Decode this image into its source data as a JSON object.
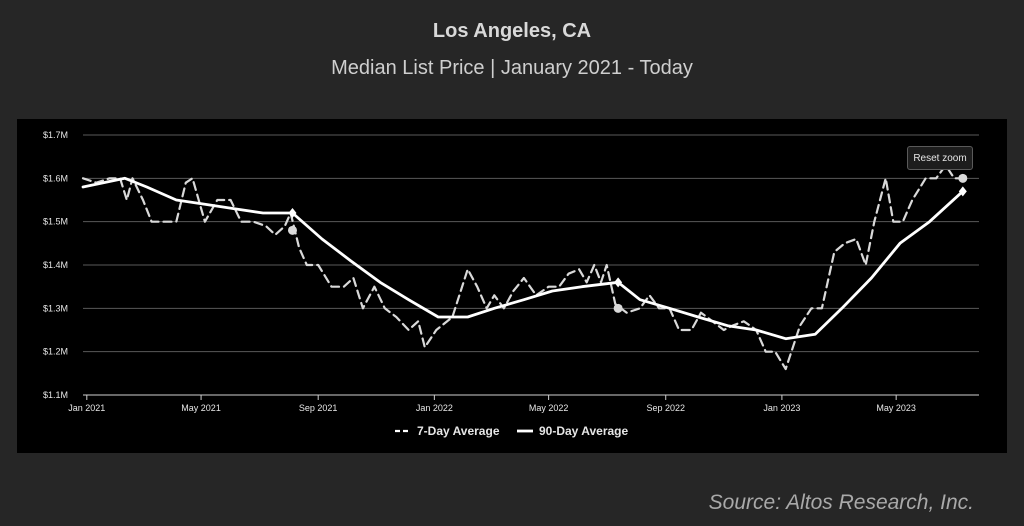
{
  "header": {
    "title": "Los Angeles, CA",
    "subtitle": "Median List Price  |  January 2021 - Today"
  },
  "reset_zoom_label": "Reset zoom",
  "source": "Source: Altos Research, Inc.",
  "colors": {
    "background": "#262626",
    "plot_background": "#000000",
    "line": "#ffffff",
    "grid": "#5a5a5a"
  },
  "chart_data": {
    "type": "line",
    "ylim": [
      1.1,
      1.7
    ],
    "y_ticks": [
      {
        "value": 1.1,
        "label": "$1.1M"
      },
      {
        "value": 1.2,
        "label": "$1.2M"
      },
      {
        "value": 1.3,
        "label": "$1.3M"
      },
      {
        "value": 1.4,
        "label": "$1.4M"
      },
      {
        "value": 1.5,
        "label": "$1.5M"
      },
      {
        "value": 1.6,
        "label": "$1.6M"
      },
      {
        "value": 1.7,
        "label": "$1.7M"
      }
    ],
    "x_ticks": [
      {
        "date": "2021-01-01",
        "label": "Jan 2021"
      },
      {
        "date": "2021-05-01",
        "label": "May 2021"
      },
      {
        "date": "2021-09-01",
        "label": "Sep 2021"
      },
      {
        "date": "2022-01-01",
        "label": "Jan 2022"
      },
      {
        "date": "2022-05-01",
        "label": "May 2022"
      },
      {
        "date": "2022-09-01",
        "label": "Sep 2022"
      },
      {
        "date": "2023-01-01",
        "label": "Jan 2023"
      },
      {
        "date": "2023-05-01",
        "label": "May 2023"
      }
    ],
    "xlim": [
      "2020-12-28",
      "2023-07-27"
    ],
    "grid": true,
    "legend_position": "bottom",
    "series": [
      {
        "name": "7-Day Average",
        "style": "dashed",
        "points": [
          [
            "2020-12-28",
            1.6
          ],
          [
            "2021-01-11",
            1.59
          ],
          [
            "2021-01-25",
            1.6
          ],
          [
            "2021-02-05",
            1.6
          ],
          [
            "2021-02-12",
            1.55
          ],
          [
            "2021-02-18",
            1.6
          ],
          [
            "2021-03-01",
            1.55
          ],
          [
            "2021-03-10",
            1.5
          ],
          [
            "2021-03-25",
            1.5
          ],
          [
            "2021-04-05",
            1.5
          ],
          [
            "2021-04-15",
            1.59
          ],
          [
            "2021-04-22",
            1.6
          ],
          [
            "2021-05-05",
            1.5
          ],
          [
            "2021-05-18",
            1.55
          ],
          [
            "2021-06-01",
            1.55
          ],
          [
            "2021-06-12",
            1.5
          ],
          [
            "2021-06-25",
            1.5
          ],
          [
            "2021-07-08",
            1.49
          ],
          [
            "2021-07-18",
            1.47
          ],
          [
            "2021-07-28",
            1.49
          ],
          [
            "2021-08-03",
            1.52
          ],
          [
            "2021-08-12",
            1.44
          ],
          [
            "2021-08-20",
            1.4
          ],
          [
            "2021-09-01",
            1.4
          ],
          [
            "2021-09-15",
            1.35
          ],
          [
            "2021-09-28",
            1.35
          ],
          [
            "2021-10-08",
            1.37
          ],
          [
            "2021-10-18",
            1.3
          ],
          [
            "2021-10-30",
            1.35
          ],
          [
            "2021-11-10",
            1.3
          ],
          [
            "2021-11-22",
            1.28
          ],
          [
            "2021-12-05",
            1.25
          ],
          [
            "2021-12-15",
            1.27
          ],
          [
            "2021-12-22",
            1.21
          ],
          [
            "2022-01-03",
            1.25
          ],
          [
            "2022-01-20",
            1.28
          ],
          [
            "2022-02-05",
            1.39
          ],
          [
            "2022-02-15",
            1.35
          ],
          [
            "2022-02-25",
            1.3
          ],
          [
            "2022-03-05",
            1.33
          ],
          [
            "2022-03-15",
            1.3
          ],
          [
            "2022-03-25",
            1.34
          ],
          [
            "2022-04-05",
            1.37
          ],
          [
            "2022-04-18",
            1.33
          ],
          [
            "2022-05-01",
            1.35
          ],
          [
            "2022-05-12",
            1.35
          ],
          [
            "2022-05-22",
            1.38
          ],
          [
            "2022-06-02",
            1.39
          ],
          [
            "2022-06-10",
            1.36
          ],
          [
            "2022-06-18",
            1.4
          ],
          [
            "2022-06-25",
            1.36
          ],
          [
            "2022-07-01",
            1.4
          ],
          [
            "2022-07-10",
            1.31
          ],
          [
            "2022-07-22",
            1.29
          ],
          [
            "2022-08-05",
            1.3
          ],
          [
            "2022-08-15",
            1.33
          ],
          [
            "2022-08-25",
            1.3
          ],
          [
            "2022-09-05",
            1.3
          ],
          [
            "2022-09-15",
            1.25
          ],
          [
            "2022-09-28",
            1.25
          ],
          [
            "2022-10-08",
            1.29
          ],
          [
            "2022-10-20",
            1.27
          ],
          [
            "2022-11-01",
            1.25
          ],
          [
            "2022-11-10",
            1.26
          ],
          [
            "2022-11-22",
            1.27
          ],
          [
            "2022-12-05",
            1.25
          ],
          [
            "2022-12-15",
            1.2
          ],
          [
            "2022-12-25",
            1.2
          ],
          [
            "2023-01-05",
            1.16
          ],
          [
            "2023-01-20",
            1.26
          ],
          [
            "2023-02-01",
            1.3
          ],
          [
            "2023-02-12",
            1.3
          ],
          [
            "2023-02-25",
            1.43
          ],
          [
            "2023-03-08",
            1.45
          ],
          [
            "2023-03-20",
            1.46
          ],
          [
            "2023-03-30",
            1.4
          ],
          [
            "2023-04-08",
            1.5
          ],
          [
            "2023-04-20",
            1.6
          ],
          [
            "2023-04-28",
            1.5
          ],
          [
            "2023-05-08",
            1.5
          ],
          [
            "2023-05-18",
            1.55
          ],
          [
            "2023-06-01",
            1.6
          ],
          [
            "2023-06-12",
            1.6
          ],
          [
            "2023-06-22",
            1.63
          ],
          [
            "2023-07-01",
            1.6
          ],
          [
            "2023-07-10",
            1.6
          ]
        ],
        "markers": [
          {
            "date": "2021-08-05",
            "value": 1.48
          },
          {
            "date": "2022-07-13",
            "value": 1.3
          },
          {
            "date": "2023-07-10",
            "value": 1.6
          }
        ]
      },
      {
        "name": "90-Day Average",
        "style": "solid",
        "points": [
          [
            "2020-12-28",
            1.58
          ],
          [
            "2021-02-10",
            1.6
          ],
          [
            "2021-03-05",
            1.58
          ],
          [
            "2021-04-05",
            1.55
          ],
          [
            "2021-05-05",
            1.54
          ],
          [
            "2021-06-05",
            1.53
          ],
          [
            "2021-07-05",
            1.52
          ],
          [
            "2021-08-05",
            1.52
          ],
          [
            "2021-09-05",
            1.46
          ],
          [
            "2021-10-05",
            1.41
          ],
          [
            "2021-11-05",
            1.36
          ],
          [
            "2021-12-05",
            1.32
          ],
          [
            "2022-01-05",
            1.28
          ],
          [
            "2022-02-05",
            1.28
          ],
          [
            "2022-03-05",
            1.3
          ],
          [
            "2022-04-05",
            1.32
          ],
          [
            "2022-05-05",
            1.34
          ],
          [
            "2022-06-05",
            1.35
          ],
          [
            "2022-07-13",
            1.36
          ],
          [
            "2022-08-05",
            1.32
          ],
          [
            "2022-09-05",
            1.3
          ],
          [
            "2022-10-05",
            1.28
          ],
          [
            "2022-11-05",
            1.26
          ],
          [
            "2022-12-05",
            1.25
          ],
          [
            "2023-01-05",
            1.23
          ],
          [
            "2023-02-05",
            1.24
          ],
          [
            "2023-03-05",
            1.3
          ],
          [
            "2023-04-05",
            1.37
          ],
          [
            "2023-05-05",
            1.45
          ],
          [
            "2023-06-05",
            1.5
          ],
          [
            "2023-07-10",
            1.57
          ]
        ],
        "markers": [
          {
            "date": "2021-08-05",
            "value": 1.52
          },
          {
            "date": "2022-07-13",
            "value": 1.36
          },
          {
            "date": "2023-07-10",
            "value": 1.57
          }
        ]
      }
    ]
  }
}
